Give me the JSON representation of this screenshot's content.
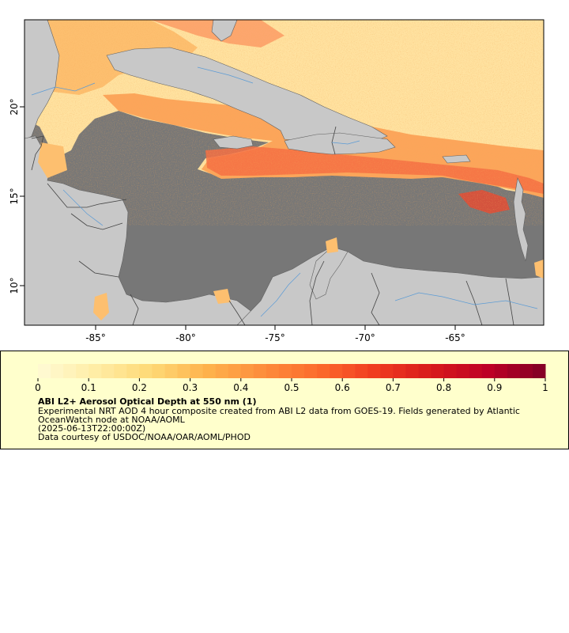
{
  "map": {
    "x_ticks": [
      "-85°",
      "-80°",
      "-75°",
      "-70°",
      "-65°"
    ],
    "y_ticks": [
      "10°",
      "15°",
      "20°"
    ],
    "colors": {
      "ocean": "#777777",
      "land": "#c8c8c8",
      "coast": "#606060",
      "rivers": "#5b9bd5",
      "frame": "#000000",
      "aod_low": "#ffe7a0",
      "aod_mid": "#f79a3c",
      "aod_high": "#d7301f"
    }
  },
  "legend": {
    "colorbar_ticks": [
      "0",
      "0.1",
      "0.2",
      "0.3",
      "0.4",
      "0.5",
      "0.6",
      "0.7",
      "0.8",
      "0.9",
      "1"
    ],
    "colorbar_stops": [
      "#fffbd5",
      "#ffeda6",
      "#fed976",
      "#feb24c",
      "#fd8d3c",
      "#fc6a2c",
      "#f03b20",
      "#d7191c",
      "#bd0026",
      "#800026"
    ],
    "title": "ABI L2+ Aerosol Optical Depth at 550 nm (1)",
    "line1": "Experimental NRT AOD 4 hour composite created from ABI L2 data from GOES-19. Fields generated by Atlantic",
    "line2": "OceanWatch node at NOAA/AOML",
    "line3": "(2025-06-13T22:00:00Z)",
    "line4": "Data courtesy of USDOC/NOAA/OAR/AOML/PHOD",
    "background": "#ffffcc"
  }
}
